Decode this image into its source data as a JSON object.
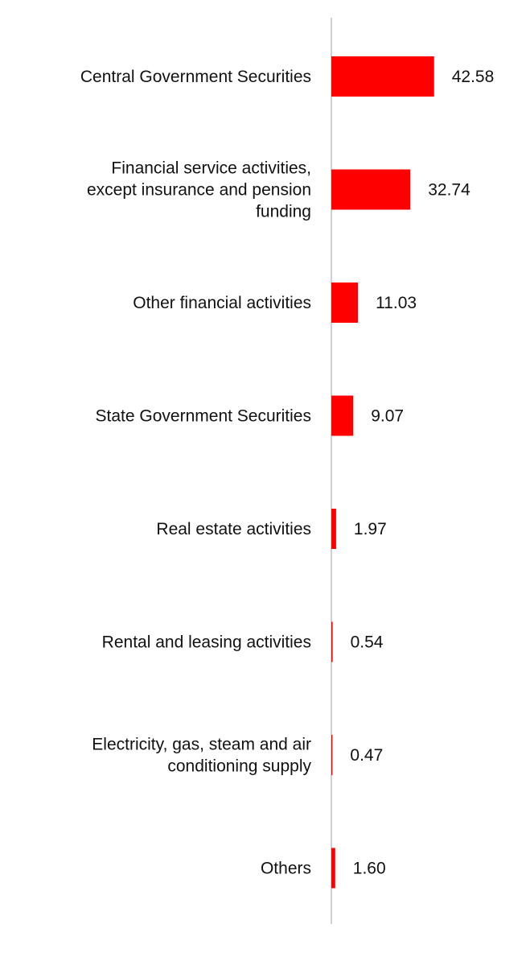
{
  "chart_data": {
    "type": "bar",
    "orientation": "horizontal",
    "categories": [
      "Central Government Securities",
      "Financial service activities, except insurance and pension funding",
      "Other financial activities",
      "State Government Securities",
      "Real estate activities",
      "Rental and leasing activities",
      "Electricity, gas, steam and air conditioning supply",
      "Others"
    ],
    "category_lines": [
      [
        "Central Government Securities"
      ],
      [
        "Financial service activities,",
        "except insurance and pension",
        "funding"
      ],
      [
        "Other financial activities"
      ],
      [
        "State Government Securities"
      ],
      [
        "Real estate activities"
      ],
      [
        "Rental and leasing activities"
      ],
      [
        "Electricity, gas, steam and air",
        "conditioning supply"
      ],
      [
        "Others"
      ]
    ],
    "values": [
      42.58,
      32.74,
      11.03,
      9.07,
      1.97,
      0.54,
      0.47,
      1.6
    ],
    "value_labels": [
      "42.58",
      "32.74",
      "11.03",
      "9.07",
      "1.97",
      "0.54",
      "0.47",
      "1.60"
    ],
    "xlim": [
      0,
      45
    ],
    "grid": false,
    "legend": "none",
    "colors": {
      "bar": "#ff0000",
      "axis": "#d0d0d0",
      "text": "#111111"
    }
  }
}
